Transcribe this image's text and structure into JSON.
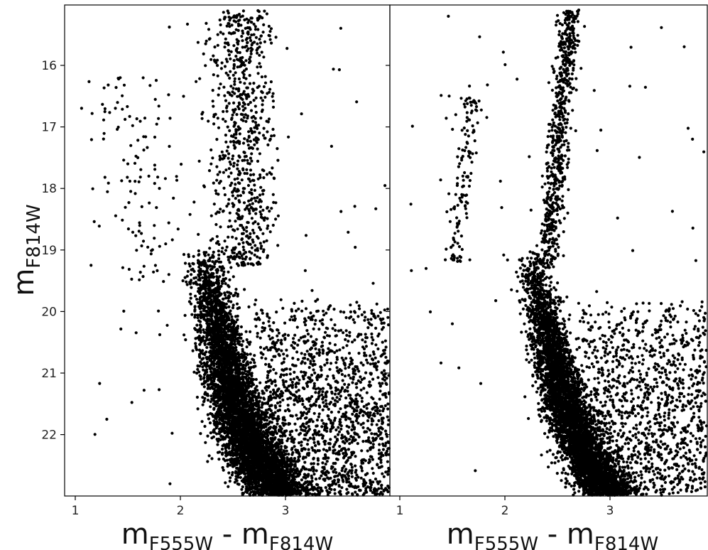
{
  "chart_data": [
    {
      "type": "scatter",
      "panel": "left",
      "xlabel_main": "m",
      "xlabel_sub1": "F555W",
      "xlabel_mid": " - m",
      "xlabel_sub2": "F814W",
      "ylabel_main": "m",
      "ylabel_sub": "F814W",
      "xlim": [
        0.9,
        3.97
      ],
      "ylim": [
        23.0,
        15.0
      ],
      "y_inverted": true,
      "x_ticks": [
        "1",
        "2",
        "3"
      ],
      "y_ticks": [
        "16",
        "17",
        "18",
        "19",
        "20",
        "21",
        "22"
      ],
      "grid": false,
      "marker_color": "#000000",
      "features": {
        "main_sequence_turnoff_color": 2.25,
        "red_giant_branch": "broad, centered near color 2.6",
        "horizontal_branch": "blue, color 1.4-2.0 at mag 16-19",
        "field_contamination": "heavy, color 2.8-3.97 at mag 20-23"
      },
      "sample_points": [
        [
          2.3,
          20.5
        ],
        [
          2.4,
          21.5
        ],
        [
          2.6,
          18.0
        ],
        [
          2.65,
          16.5
        ],
        [
          2.7,
          15.5
        ],
        [
          1.5,
          17.6
        ],
        [
          1.7,
          17.8
        ],
        [
          3.5,
          22.0
        ],
        [
          1.15,
          19.25
        ],
        [
          1.3,
          21.75
        ]
      ]
    },
    {
      "type": "scatter",
      "panel": "right",
      "xlabel_main": "m",
      "xlabel_sub1": "F555W",
      "xlabel_mid": " - m",
      "xlabel_sub2": "F814W",
      "xlim": [
        0.9,
        3.97
      ],
      "ylim": [
        23.0,
        15.0
      ],
      "y_inverted": true,
      "x_ticks": [
        "1",
        "2",
        "3"
      ],
      "grid": false,
      "marker_color": "#000000",
      "features": {
        "main_sequence_turnoff_color": 2.3,
        "red_giant_branch": "narrow, color 2.35 at mag 19.5 to 2.6 at mag 15",
        "horizontal_branch": "blue, color 1.5-1.75 at mag 17-19",
        "field_contamination": "moderate, color 2.8-3.97 at mag 20-23"
      },
      "sample_points": [
        [
          2.35,
          20.5
        ],
        [
          2.45,
          21.5
        ],
        [
          2.5,
          18.0
        ],
        [
          2.55,
          16.5
        ],
        [
          2.6,
          15.2
        ],
        [
          1.6,
          17.8
        ],
        [
          1.55,
          18.6
        ],
        [
          3.5,
          22.0
        ],
        [
          1.25,
          19.3
        ],
        [
          1.5,
          20.2
        ]
      ]
    }
  ]
}
